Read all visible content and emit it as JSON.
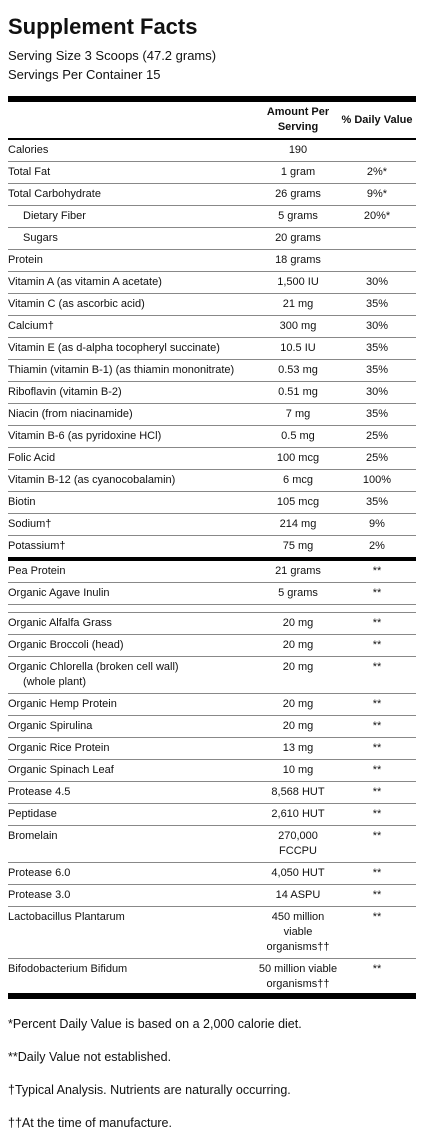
{
  "header": {
    "title": "Supplement Facts",
    "serving_size": "Serving Size 3 Scoops (47.2 grams)",
    "servings_per_container": "Servings Per Container 15"
  },
  "table_header": {
    "amount": "Amount Per Serving",
    "dv": "% Daily Value"
  },
  "rows_a": [
    {
      "name": "Calories",
      "amount": "190",
      "dv": ""
    },
    {
      "name": "Total Fat",
      "amount": "1 gram",
      "dv": "2%*"
    },
    {
      "name": "Total Carbohydrate",
      "amount": "26 grams",
      "dv": "9%*"
    },
    {
      "name": "Dietary Fiber",
      "amount": "5 grams",
      "dv": "20%*"
    },
    {
      "name": "Sugars",
      "amount": "20 grams",
      "dv": ""
    },
    {
      "name": "Protein",
      "amount": "18 grams",
      "dv": ""
    },
    {
      "name": "Vitamin A (as vitamin A acetate)",
      "amount": "1,500 IU",
      "dv": "30%"
    },
    {
      "name": "Vitamin C (as ascorbic acid)",
      "amount": "21 mg",
      "dv": "35%"
    },
    {
      "name": "Calcium†",
      "amount": "300 mg",
      "dv": "30%"
    },
    {
      "name": "Vitamin E (as d-alpha tocopheryl succinate)",
      "amount": "10.5 IU",
      "dv": "35%"
    },
    {
      "name": "Thiamin (vitamin B-1) (as thiamin mononitrate)",
      "amount": "0.53 mg",
      "dv": "35%"
    },
    {
      "name": "Riboflavin (vitamin B-2)",
      "amount": "0.51 mg",
      "dv": "30%"
    },
    {
      "name": "Niacin (from niacinamide)",
      "amount": "7 mg",
      "dv": "35%"
    },
    {
      "name": "Vitamin B-6 (as pyridoxine HCl)",
      "amount": "0.5 mg",
      "dv": "25%"
    },
    {
      "name": "Folic Acid",
      "amount": "100 mcg",
      "dv": "25%"
    },
    {
      "name": "Vitamin B-12 (as cyanocobalamin)",
      "amount": "6 mcg",
      "dv": "100%"
    },
    {
      "name": "Biotin",
      "amount": "105 mcg",
      "dv": "35%"
    },
    {
      "name": "Sodium†",
      "amount": "214 mg",
      "dv": "9%"
    },
    {
      "name": "Potassium†",
      "amount": "75 mg",
      "dv": "2%"
    }
  ],
  "rows_b": [
    {
      "name": "Pea Protein",
      "amount": "21 grams",
      "dv": "**"
    },
    {
      "name": "Organic Agave Inulin",
      "amount": "5 grams",
      "dv": "**"
    }
  ],
  "rows_c": [
    {
      "name": "Organic Alfalfa Grass",
      "amount": "20 mg",
      "dv": "**"
    },
    {
      "name": "Organic Broccoli (head)",
      "amount": "20 mg",
      "dv": "**"
    },
    {
      "name": "Organic Chlorella (broken cell wall)",
      "name2": "(whole plant)",
      "amount": "20 mg",
      "dv": "**"
    },
    {
      "name": "Organic Hemp Protein",
      "amount": "20 mg",
      "dv": "**"
    },
    {
      "name": "Organic Spirulina",
      "amount": "20 mg",
      "dv": "**"
    },
    {
      "name": "Organic Rice Protein",
      "amount": "13 mg",
      "dv": "**"
    },
    {
      "name": "Organic Spinach Leaf",
      "amount": "10 mg",
      "dv": "**"
    },
    {
      "name": "Protease 4.5",
      "amount": "8,568 HUT",
      "dv": "**"
    },
    {
      "name": "Peptidase",
      "amount": "2,610 HUT",
      "dv": "**"
    },
    {
      "name": "Bromelain",
      "amount": "270,000",
      "amount2": "FCCPU",
      "dv": "**"
    },
    {
      "name": "Protease 6.0",
      "amount": "4,050 HUT",
      "dv": "**"
    },
    {
      "name": "Protease 3.0",
      "amount": "14 ASPU",
      "dv": "**"
    },
    {
      "name": "Lactobacillus Plantarum",
      "amount": "450 million",
      "amount2": "viable",
      "amount3": "organisms††",
      "dv": "**"
    },
    {
      "name": "Bifodobacterium Bifidum",
      "amount": "50 million viable",
      "amount2": "organisms††",
      "dv": "**"
    }
  ],
  "footnotes": [
    "*Percent Daily Value is based on a 2,000 calorie diet.",
    "**Daily Value not established.",
    "†Typical Analysis. Nutrients are naturally occurring.",
    "††At the time of manufacture."
  ]
}
